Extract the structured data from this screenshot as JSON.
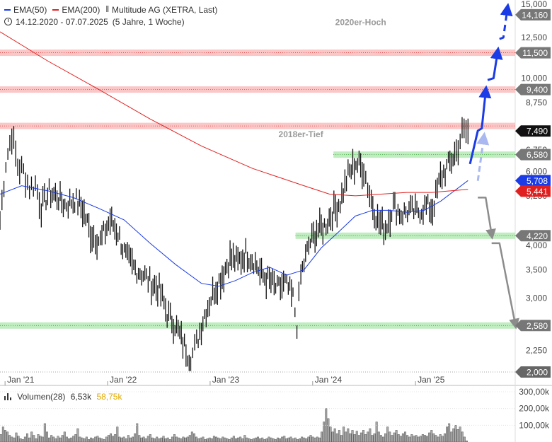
{
  "legend": {
    "ema50_label": "EMA(50)",
    "ema200_label": "EMA(200)",
    "instrument": "Multitude AG (XETRA, Last)",
    "period": "14.12.2020 - 07.07.2025",
    "resolution": "(5 Jahre, 1 Woche)",
    "ema50_color": "#1a3be6",
    "ema200_color": "#e02020"
  },
  "volume_legend": {
    "label": "Volumen(28)",
    "value": "6,53k",
    "avg": "58,75k"
  },
  "chart_data": {
    "type": "line",
    "title": "Multitude AG (XETRA, Last)",
    "y_scale": "log",
    "ylim": [
      2.0,
      15.0
    ],
    "x_range": [
      "2020-12-14",
      "2025-07-07"
    ],
    "y_ticks": [
      {
        "value": 15.0,
        "label": "15,000"
      },
      {
        "value": 12.5,
        "label": "12,500"
      },
      {
        "value": 10.0,
        "label": "10,000"
      },
      {
        "value": 8.75,
        "label": "8,750"
      },
      {
        "value": 6.75,
        "label": "6,750"
      },
      {
        "value": 6.0,
        "label": "6,000"
      },
      {
        "value": 5.25,
        "label": "5,250"
      },
      {
        "value": 4.0,
        "label": "4,000"
      },
      {
        "value": 3.5,
        "label": "3,500"
      },
      {
        "value": 3.0,
        "label": "3,000"
      },
      {
        "value": 2.25,
        "label": "2,250"
      },
      {
        "value": 2.0,
        "label": "2,000"
      }
    ],
    "x_ticks": [
      {
        "date": "2021-01-01",
        "label": "Jan '21"
      },
      {
        "date": "2022-01-01",
        "label": "Jan '22"
      },
      {
        "date": "2023-01-01",
        "label": "Jan '23"
      },
      {
        "date": "2024-01-01",
        "label": "Jan '24"
      },
      {
        "date": "2025-01-01",
        "label": "Jan '25"
      }
    ],
    "price_labels": [
      {
        "value": 14.16,
        "label": "14,160",
        "style": "grey"
      },
      {
        "value": 11.5,
        "label": "11,500",
        "style": "grey"
      },
      {
        "value": 9.4,
        "label": "9,400",
        "style": "grey"
      },
      {
        "value": 7.49,
        "label": "7,490",
        "style": "black"
      },
      {
        "value": 6.58,
        "label": "6,580",
        "style": "grey"
      },
      {
        "value": 5.708,
        "label": "5,708",
        "style": "blue"
      },
      {
        "value": 5.441,
        "label": "5,441",
        "style": "red"
      },
      {
        "value": 4.22,
        "label": "4,220",
        "style": "grey"
      },
      {
        "value": 2.58,
        "label": "2,580",
        "style": "grey"
      },
      {
        "value": 2.0,
        "label": "2,000",
        "style": "plain"
      }
    ],
    "resistance_zones": [
      11.5,
      9.4,
      7.7
    ],
    "support_zones": [
      {
        "value": 6.58,
        "from": "2024-03-15"
      },
      {
        "value": 4.22,
        "from": "2023-11-01"
      },
      {
        "value": 2.58,
        "from": "2020-12-14"
      }
    ],
    "annotations": [
      {
        "text": "2020er-Hoch",
        "value": 13.6,
        "date": "2024-06-20"
      },
      {
        "text": "2018er-Tief",
        "value": 7.35,
        "date": "2023-11-20"
      }
    ],
    "price_series": [
      [
        "2020-12-14",
        4.6
      ],
      [
        "2021-01-04",
        6.3
      ],
      [
        "2021-01-25",
        7.4
      ],
      [
        "2021-02-15",
        6.2
      ],
      [
        "2021-03-08",
        6.0
      ],
      [
        "2021-03-29",
        5.5
      ],
      [
        "2021-04-19",
        5.6
      ],
      [
        "2021-05-10",
        4.95
      ],
      [
        "2021-06-07",
        5.35
      ],
      [
        "2021-07-05",
        5.25
      ],
      [
        "2021-08-02",
        5.0
      ],
      [
        "2021-09-06",
        5.15
      ],
      [
        "2021-10-04",
        4.9
      ],
      [
        "2021-11-01",
        4.3
      ],
      [
        "2021-12-06",
        4.1
      ],
      [
        "2022-01-10",
        4.6
      ],
      [
        "2022-02-07",
        4.3
      ],
      [
        "2022-03-07",
        3.75
      ],
      [
        "2022-04-04",
        3.55
      ],
      [
        "2022-05-02",
        3.45
      ],
      [
        "2022-06-06",
        3.25
      ],
      [
        "2022-07-04",
        3.15
      ],
      [
        "2022-08-01",
        2.75
      ],
      [
        "2022-08-29",
        2.6
      ],
      [
        "2022-09-26",
        2.35
      ],
      [
        "2022-10-24",
        2.15
      ],
      [
        "2022-11-14",
        2.35
      ],
      [
        "2022-12-12",
        2.75
      ],
      [
        "2023-01-16",
        3.15
      ],
      [
        "2023-02-13",
        3.4
      ],
      [
        "2023-03-13",
        3.75
      ],
      [
        "2023-04-10",
        3.65
      ],
      [
        "2023-05-08",
        3.85
      ],
      [
        "2023-06-05",
        3.7
      ],
      [
        "2023-07-03",
        3.4
      ],
      [
        "2023-07-31",
        3.3
      ],
      [
        "2023-08-28",
        3.15
      ],
      [
        "2023-09-25",
        3.25
      ],
      [
        "2023-10-23",
        3.0
      ],
      [
        "2023-11-06",
        2.6
      ],
      [
        "2023-11-20",
        3.4
      ],
      [
        "2023-12-18",
        4.0
      ],
      [
        "2024-01-15",
        4.35
      ],
      [
        "2024-02-12",
        4.45
      ],
      [
        "2024-03-11",
        4.8
      ],
      [
        "2024-04-08",
        5.1
      ],
      [
        "2024-05-06",
        5.9
      ],
      [
        "2024-06-03",
        6.3
      ],
      [
        "2024-07-01",
        6.1
      ],
      [
        "2024-07-22",
        5.3
      ],
      [
        "2024-08-19",
        4.6
      ],
      [
        "2024-09-16",
        4.4
      ],
      [
        "2024-10-14",
        5.0
      ],
      [
        "2024-11-11",
        4.75
      ],
      [
        "2024-12-09",
        4.85
      ],
      [
        "2025-01-06",
        4.8
      ],
      [
        "2025-02-03",
        4.95
      ],
      [
        "2025-03-03",
        4.9
      ],
      [
        "2025-03-31",
        5.8
      ],
      [
        "2025-04-28",
        6.2
      ],
      [
        "2025-05-26",
        6.7
      ],
      [
        "2025-06-16",
        7.4
      ],
      [
        "2025-07-07",
        7.49
      ]
    ],
    "series": [
      {
        "name": "EMA(50)",
        "color": "#1a3be6",
        "points": [
          [
            "2020-12-14",
            5.3
          ],
          [
            "2021-03-01",
            5.55
          ],
          [
            "2021-06-01",
            5.4
          ],
          [
            "2021-09-01",
            5.2
          ],
          [
            "2021-12-01",
            4.9
          ],
          [
            "2022-03-01",
            4.6
          ],
          [
            "2022-06-01",
            4.05
          ],
          [
            "2022-09-01",
            3.6
          ],
          [
            "2022-12-01",
            3.25
          ],
          [
            "2023-02-01",
            3.2
          ],
          [
            "2023-04-01",
            3.3
          ],
          [
            "2023-06-01",
            3.45
          ],
          [
            "2023-08-01",
            3.55
          ],
          [
            "2023-10-01",
            3.4
          ],
          [
            "2023-12-01",
            3.5
          ],
          [
            "2024-02-01",
            3.95
          ],
          [
            "2024-04-01",
            4.3
          ],
          [
            "2024-06-01",
            4.7
          ],
          [
            "2024-08-01",
            4.85
          ],
          [
            "2024-10-01",
            4.85
          ],
          [
            "2024-12-01",
            4.8
          ],
          [
            "2025-02-01",
            4.85
          ],
          [
            "2025-04-01",
            5.1
          ],
          [
            "2025-07-07",
            5.708
          ]
        ]
      },
      {
        "name": "EMA(200)",
        "color": "#e02020",
        "points": [
          [
            "2020-12-14",
            12.9
          ],
          [
            "2021-06-01",
            11.0
          ],
          [
            "2021-12-01",
            9.4
          ],
          [
            "2022-06-01",
            8.0
          ],
          [
            "2022-12-01",
            6.9
          ],
          [
            "2023-06-01",
            6.1
          ],
          [
            "2023-12-01",
            5.55
          ],
          [
            "2024-03-01",
            5.3
          ],
          [
            "2024-06-01",
            5.25
          ],
          [
            "2024-09-01",
            5.3
          ],
          [
            "2024-12-01",
            5.35
          ],
          [
            "2025-03-01",
            5.35
          ],
          [
            "2025-07-07",
            5.441
          ]
        ]
      }
    ],
    "volume": {
      "ylim": [
        0,
        300000
      ],
      "ticks": [
        {
          "value": 300000,
          "label": "300,00k"
        },
        {
          "value": 200000,
          "label": "200,00k"
        },
        {
          "value": 100000,
          "label": "100,00k"
        }
      ],
      "values": [
        45000,
        90000,
        70000,
        60000,
        40000,
        30000,
        25000,
        55000,
        35000,
        20000,
        15000,
        30000,
        50000,
        25000,
        60000,
        40000,
        20000,
        45000,
        35000,
        30000,
        110000,
        60000,
        25000,
        40000,
        30000,
        20000,
        35000,
        25000,
        40000,
        60000,
        30000,
        20000,
        25000,
        35000,
        45000,
        80000,
        30000,
        25000,
        20000,
        30000,
        15000,
        25000,
        20000,
        30000,
        35000,
        25000,
        20000,
        15000,
        30000,
        40000,
        50000,
        35000,
        45000,
        90000,
        30000,
        25000,
        30000,
        20000,
        40000,
        25000,
        30000,
        50000,
        110000,
        40000,
        25000,
        30000,
        20000,
        35000,
        45000,
        25000,
        20000,
        30000,
        20000,
        25000,
        35000,
        20000,
        25000,
        15000,
        30000,
        45000,
        30000,
        25000,
        20000,
        30000,
        25000,
        30000,
        40000,
        60000,
        50000,
        30000,
        20000,
        25000,
        30000,
        15000,
        20000,
        25000,
        20000,
        35000,
        30000,
        25000,
        20000,
        30000,
        25000,
        20000,
        15000,
        25000,
        35000,
        20000,
        25000,
        30000,
        20000,
        40000,
        25000,
        20000,
        15000,
        20000,
        25000,
        30000,
        20000,
        25000,
        15000,
        20000,
        30000,
        25000,
        20000,
        15000,
        25000,
        20000,
        30000,
        35000,
        20000,
        25000,
        30000,
        20000,
        25000,
        15000,
        20000,
        30000,
        25000,
        20000,
        30000,
        40000,
        30000,
        25000,
        30000,
        25000,
        60000,
        120000,
        200000,
        140000,
        90000,
        60000,
        80000,
        50000,
        70000,
        40000,
        90000,
        60000,
        80000,
        50000,
        70000,
        45000,
        65000,
        40000,
        55000,
        70000,
        45000,
        60000,
        80000,
        40000,
        50000,
        120000,
        60000,
        40000,
        30000,
        50000,
        90000,
        60000,
        40000,
        55000,
        70000,
        45000,
        35000,
        50000,
        60000,
        40000,
        30000,
        45000,
        35000,
        40000,
        30000,
        35000,
        45000,
        40000,
        35000,
        55000,
        70000,
        50000,
        40000,
        30000,
        45000,
        35000,
        50000,
        90000,
        110000,
        60000,
        80000,
        100000,
        75000,
        90000,
        60000,
        30000,
        6530
      ]
    },
    "projections": [
      {
        "style": "blue-solid",
        "points": [
          [
            "2025-07-14",
            6.25
          ],
          [
            "2025-08-11",
            7.5
          ],
          [
            "2025-08-25",
            7.6
          ],
          [
            "2025-09-08",
            9.3
          ]
        ]
      },
      {
        "style": "blue-solid",
        "points": [
          [
            "2025-09-15",
            9.9
          ],
          [
            "2025-10-06",
            10.0
          ],
          [
            "2025-10-20",
            11.5
          ]
        ]
      },
      {
        "style": "blue-dashed",
        "points": [
          [
            "2025-10-27",
            12.4
          ],
          [
            "2025-11-10",
            12.5
          ],
          [
            "2025-11-24",
            14.6
          ]
        ]
      },
      {
        "style": "lightblue-dashed",
        "points": [
          [
            "2025-08-11",
            5.7
          ],
          [
            "2025-09-01",
            7.2
          ]
        ]
      },
      {
        "style": "grey-arrow",
        "points": [
          [
            "2025-08-11",
            5.2
          ],
          [
            "2025-09-08",
            5.2
          ],
          [
            "2025-09-29",
            4.25
          ]
        ]
      },
      {
        "style": "grey-arrow",
        "points": [
          [
            "2025-09-29",
            4.05
          ],
          [
            "2025-10-27",
            4.05
          ],
          [
            "2025-12-22",
            2.6
          ]
        ]
      }
    ]
  }
}
